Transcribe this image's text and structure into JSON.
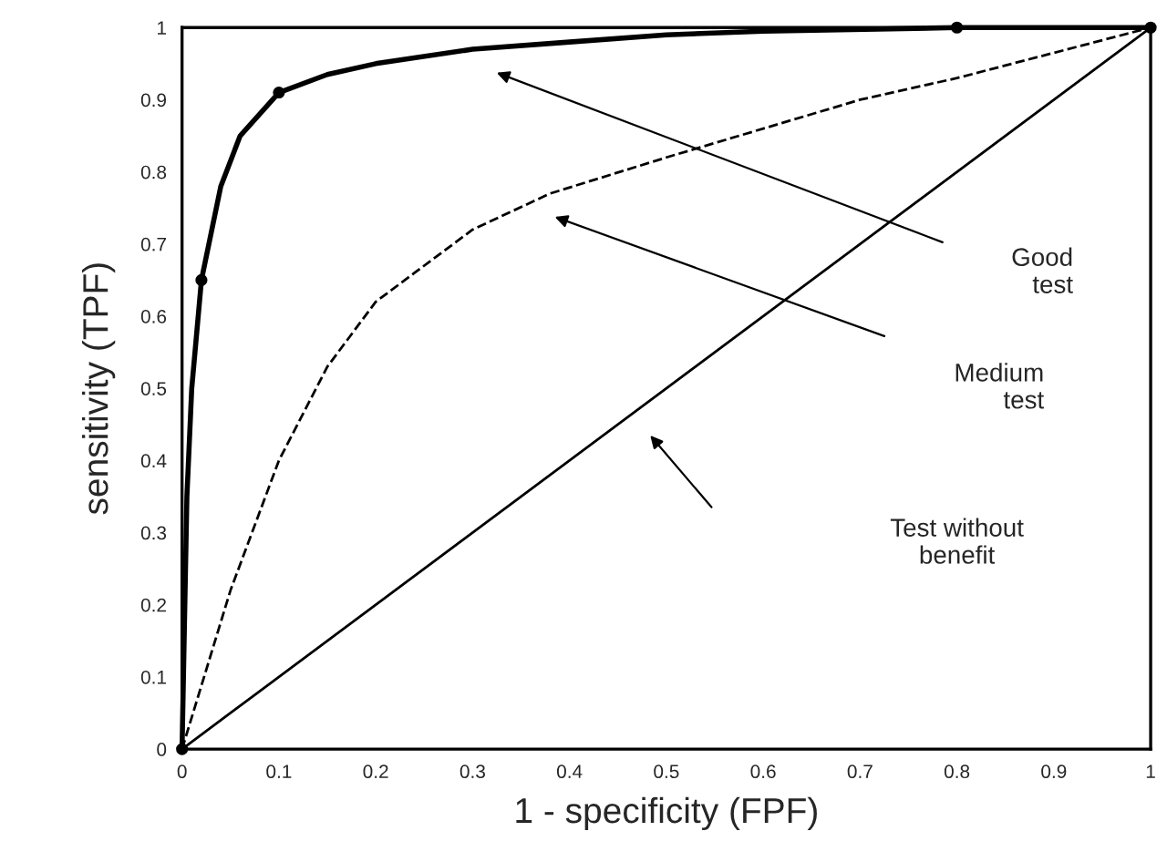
{
  "chart_data": {
    "type": "line",
    "xlabel": "1 - specificity (FPF)",
    "ylabel": "sensitivity (TPF)",
    "xlim": [
      0,
      1
    ],
    "ylim": [
      0,
      1
    ],
    "xticks": [
      0,
      0.1,
      0.2,
      0.3,
      0.4,
      0.5,
      0.6,
      0.7,
      0.8,
      0.9,
      1
    ],
    "yticks": [
      0,
      0.1,
      0.2,
      0.3,
      0.4,
      0.5,
      0.6,
      0.7,
      0.8,
      0.9,
      1
    ],
    "grid": false,
    "legend": false,
    "marker": "none",
    "series": [
      {
        "color": "#000000",
        "line_style": "solid",
        "x": [
          0,
          0.005,
          0.01,
          0.02,
          0.04,
          0.06,
          0.1,
          0.15,
          0.2,
          0.3,
          0.4,
          0.5,
          0.6,
          0.8,
          1
        ],
        "values": [
          0,
          0.35,
          0.5,
          0.65,
          0.78,
          0.85,
          0.91,
          0.935,
          0.95,
          0.97,
          0.98,
          0.99,
          0.995,
          1,
          1
        ]
      },
      {
        "color": "#000000",
        "line_style": "dashed",
        "x": [
          0,
          0.05,
          0.1,
          0.15,
          0.2,
          0.24,
          0.3,
          0.38,
          0.5,
          0.6,
          0.7,
          0.8,
          0.9,
          1
        ],
        "values": [
          0,
          0.22,
          0.4,
          0.53,
          0.62,
          0.66,
          0.72,
          0.77,
          0.82,
          0.86,
          0.9,
          0.93,
          0.965,
          1
        ]
      },
      {
        "color": "#000000",
        "line_style": "solid",
        "x": [
          0,
          1
        ],
        "values": [
          0,
          1
        ]
      },
      {
        "type": "scatter",
        "color": "#000000",
        "marker": "circle",
        "x": [
          0,
          0.02,
          0.1,
          0.8,
          1
        ],
        "values": [
          0,
          0.65,
          0.91,
          1,
          1
        ]
      }
    ],
    "annotations": [
      "Good\ntest",
      "Medium\ntest",
      "Test without\nbenefit"
    ]
  }
}
